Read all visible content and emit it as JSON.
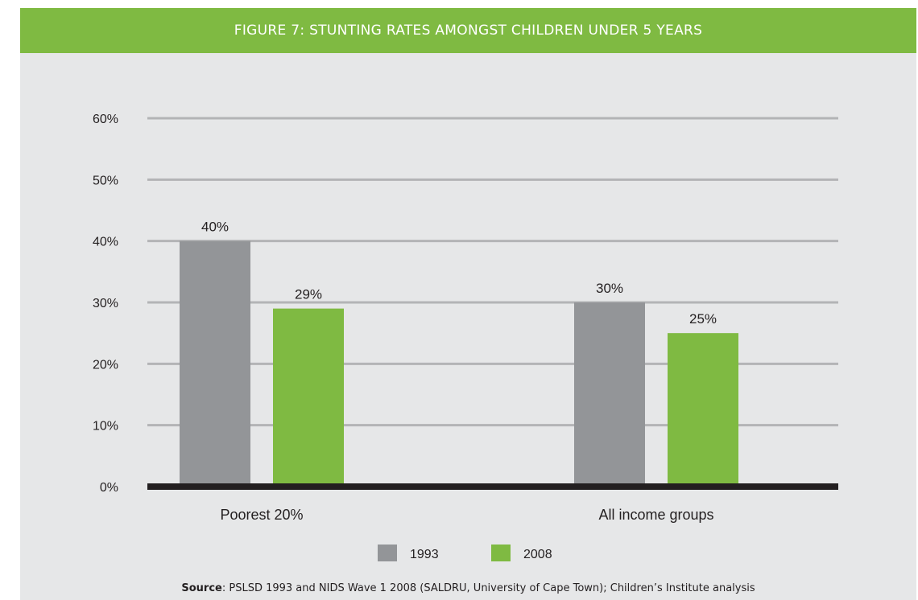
{
  "figure": {
    "title": "FIGURE 7: STUNTING RATES AMONGST CHILDREN UNDER 5 YEARS",
    "source_prefix": "Source",
    "source_text": ": PSLSD 1993 and NIDS Wave 1 2008 (SALDRU, University of Cape Town); Children’s Institute analysis"
  },
  "colors": {
    "header": "#7fba42",
    "panel": "#e6e7e8",
    "gridline": "#b3b4b6",
    "baseline": "#231f20"
  },
  "chart_data": {
    "type": "bar",
    "title": "FIGURE 7: STUNTING RATES AMONGST CHILDREN UNDER 5 YEARS",
    "xlabel": "",
    "ylabel": "",
    "categories": [
      "Poorest 20%",
      "All income groups"
    ],
    "series": [
      {
        "name": "1993",
        "values": [
          40,
          30
        ],
        "labels": [
          "40%",
          "30%"
        ],
        "color": "#939598"
      },
      {
        "name": "2008",
        "values": [
          29,
          25
        ],
        "labels": [
          "29%",
          "25%"
        ],
        "color": "#7fba42"
      }
    ],
    "ylim": [
      0,
      60
    ],
    "yticks": [
      0,
      10,
      20,
      30,
      40,
      50,
      60
    ],
    "ytick_labels": [
      "0%",
      "10%",
      "20%",
      "30%",
      "40%",
      "50%",
      "60%"
    ],
    "grid": true,
    "legend": "bottom-center"
  }
}
